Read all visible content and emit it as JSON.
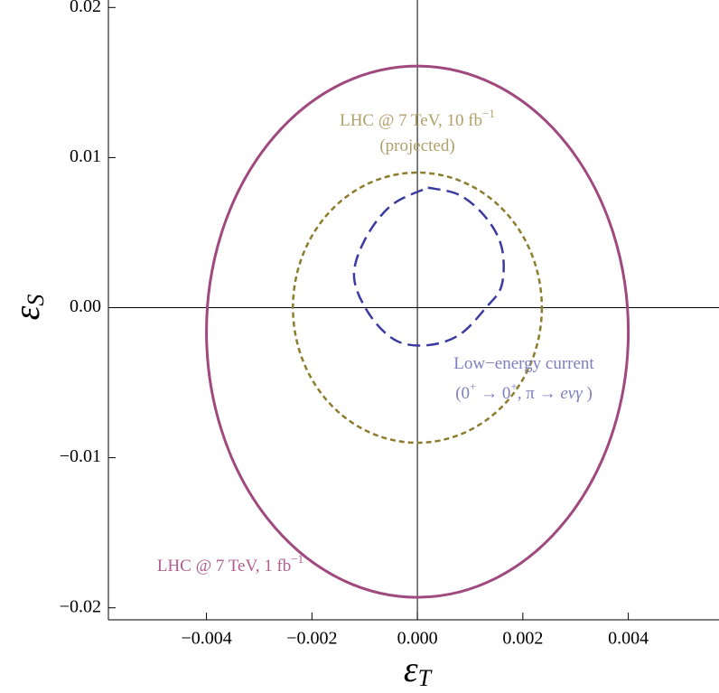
{
  "chart_data": {
    "type": "contour",
    "xlim": [
      -0.00586,
      0.00572
    ],
    "ylim": [
      -0.0208,
      0.0205
    ],
    "xticks": [
      {
        "value": -0.004,
        "label": "−0.004"
      },
      {
        "value": -0.002,
        "label": "−0.002"
      },
      {
        "value": 0,
        "label": "0.000"
      },
      {
        "value": 0.002,
        "label": "0.002"
      },
      {
        "value": 0.004,
        "label": "0.004"
      }
    ],
    "yticks": [
      {
        "value": -0.02,
        "label": "−0.02"
      },
      {
        "value": -0.01,
        "label": "−0.01"
      },
      {
        "value": 0,
        "label": "0.00"
      },
      {
        "value": 0.01,
        "label": "0.01"
      },
      {
        "value": 0.02,
        "label": "0.02"
      }
    ],
    "xlabel": {
      "text": "ε",
      "sub": "T"
    },
    "ylabel": {
      "text": "ε",
      "sub": "S"
    },
    "series": [
      {
        "shape": "ellipse",
        "color": "#a0497f",
        "dash": "none",
        "center": [
          0,
          -0.0016
        ],
        "radii": [
          0.004,
          0.0177
        ]
      },
      {
        "shape": "ellipse",
        "color": "#8c7d2e",
        "dash": "6 4",
        "center": [
          0,
          0
        ],
        "radii": [
          0.00236,
          0.009
        ]
      },
      {
        "shape": "line",
        "color": "#3a3aa0",
        "dash": "14 7",
        "x": [
          0.0002,
          0.0008,
          0.0013,
          0.0016,
          0.0016,
          0.0013,
          0.0008,
          0.0002,
          -0.0004,
          -0.0009,
          -0.0012,
          -0.001,
          -0.0005,
          0.0002
        ],
        "values": [
          0.008,
          0.0075,
          0.006,
          0.004,
          0.0015,
          0,
          -0.0018,
          -0.0025,
          -0.0022,
          -0.0005,
          0.002,
          0.0045,
          0.0068,
          0.008
        ]
      }
    ],
    "annotations": [
      {
        "color": "#b0a06a",
        "lines": [
          [
            {
              "text": "LHC @ 7 TeV, 10 fb"
            },
            {
              "sup": "−1"
            }
          ],
          [
            {
              "text": "(projected)"
            }
          ]
        ]
      },
      {
        "color": "#7e7ec0",
        "lines": [
          [
            {
              "text": "Low−energy current"
            }
          ],
          [
            {
              "text": "(0"
            },
            {
              "sup": "+"
            },
            {
              "text": " → 0"
            },
            {
              "sup": "+"
            },
            {
              "text": ", π → "
            },
            {
              "text": "eνγ",
              "italic": true
            },
            {
              "text": " )"
            }
          ]
        ]
      },
      {
        "color": "#b05e90",
        "lines": [
          [
            {
              "text": "LHC @ 7 TeV, 1 fb"
            },
            {
              "sup": "−1"
            }
          ]
        ]
      }
    ]
  }
}
